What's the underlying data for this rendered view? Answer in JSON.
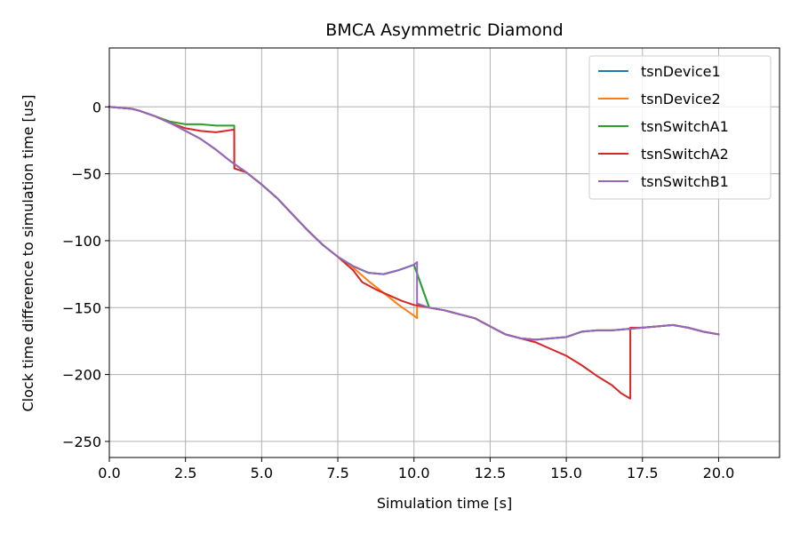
{
  "chart_data": {
    "type": "line",
    "title": "BMCA Asymmetric Diamond",
    "xlabel": "Simulation time [s]",
    "ylabel": "Clock time difference to simulation time [us]",
    "xlim": [
      0,
      22
    ],
    "ylim": [
      -262,
      44
    ],
    "xticks": [
      0,
      2.5,
      5,
      7.5,
      10,
      12.5,
      15,
      17.5,
      20
    ],
    "xtick_labels": [
      "0.0",
      "2.5",
      "5.0",
      "7.5",
      "10.0",
      "12.5",
      "15.0",
      "17.5",
      "20.0"
    ],
    "yticks": [
      0,
      -50,
      -100,
      -150,
      -200,
      -250
    ],
    "ytick_labels": [
      "0",
      "−50",
      "−100",
      "−150",
      "−200",
      "−250"
    ],
    "grid": true,
    "legend_position": "top-right",
    "series": [
      {
        "name": "tsnDevice1",
        "color": "#1f77b4",
        "x": [
          0,
          0.5,
          0.75,
          1.0,
          1.5,
          2.0,
          2.5,
          3.0,
          3.5,
          4.0,
          4.5,
          5.0,
          5.5,
          6.0,
          6.5,
          7.0,
          7.5,
          8.0,
          8.5,
          9.0,
          9.5,
          10.0,
          10.5,
          11.0,
          11.5,
          12.0,
          12.5,
          13.0,
          13.5,
          14.0,
          14.5,
          15.0,
          15.5,
          16.0,
          16.5,
          17.0,
          17.5,
          18.0,
          18.5,
          19.0,
          19.5,
          20.0
        ],
        "y": [
          0,
          -1,
          -1.5,
          -3,
          -7,
          -12,
          -18,
          -24,
          -32,
          -41,
          -49,
          -58,
          -68,
          -80,
          -92,
          -103,
          -112,
          -119,
          -124,
          -125,
          -122,
          -118,
          -150,
          -152,
          -155,
          -158,
          -164,
          -170,
          -173,
          -174,
          -173,
          -172,
          -168,
          -167,
          -167,
          -166,
          -165,
          -164,
          -163,
          -165,
          -168,
          -170
        ]
      },
      {
        "name": "tsnDevice2",
        "color": "#ff7f0e",
        "x": [
          0,
          0.5,
          0.75,
          1.0,
          1.5,
          2.0,
          2.5,
          3.0,
          3.5,
          4.0,
          4.5,
          5.0,
          5.5,
          6.0,
          6.5,
          7.0,
          7.5,
          7.9,
          8.5,
          9.0,
          9.5,
          10.0,
          10.1,
          10.101,
          10.5,
          11.0,
          11.5,
          12.0,
          12.5,
          13.0,
          13.5,
          14.0,
          14.5,
          15.0,
          15.5,
          16.0,
          16.5,
          17.0,
          17.5,
          18.0,
          18.5,
          19.0,
          19.5,
          20.0
        ],
        "y": [
          0,
          -1,
          -1.5,
          -3,
          -7,
          -12,
          -18,
          -24,
          -32,
          -41,
          -49,
          -58,
          -68,
          -80,
          -92,
          -103,
          -112,
          -118,
          -130,
          -139,
          -148,
          -156,
          -158,
          -147,
          -150,
          -152,
          -155,
          -158,
          -164,
          -170,
          -173,
          -174,
          -173,
          -172,
          -168,
          -167,
          -167,
          -166,
          -165,
          -164,
          -163,
          -165,
          -168,
          -170
        ]
      },
      {
        "name": "tsnSwitchA1",
        "color": "#2ca02c",
        "x": [
          0,
          0.5,
          0.75,
          1.0,
          1.5,
          2.0,
          2.5,
          3.0,
          3.5,
          4.0,
          4.1,
          4.101,
          4.5,
          5.0,
          5.5,
          6.0,
          6.5,
          7.0,
          7.5,
          8.0,
          8.5,
          9.0,
          9.5,
          10.0,
          10.5,
          11.0,
          11.5,
          12.0,
          12.5,
          13.0,
          13.5,
          14.0,
          14.5,
          15.0,
          15.5,
          16.0,
          16.5,
          17.0,
          17.5,
          18.0,
          18.5,
          19.0,
          19.5,
          20.0
        ],
        "y": [
          0,
          -1,
          -1.5,
          -3,
          -7,
          -11,
          -13,
          -13,
          -14,
          -14,
          -14,
          -46,
          -49,
          -58,
          -68,
          -80,
          -92,
          -103,
          -112,
          -119,
          -124,
          -125,
          -122,
          -118,
          -150,
          -152,
          -155,
          -158,
          -164,
          -170,
          -173,
          -174,
          -173,
          -172,
          -168,
          -167,
          -167,
          -166,
          -165,
          -164,
          -163,
          -165,
          -168,
          -170
        ]
      },
      {
        "name": "tsnSwitchA2",
        "color": "#d62728",
        "x": [
          0,
          0.5,
          0.75,
          1.0,
          1.5,
          2.0,
          2.5,
          3.0,
          3.5,
          3.8,
          4.1,
          4.101,
          4.5,
          5.0,
          5.5,
          6.0,
          6.5,
          7.0,
          7.5,
          8.0,
          8.3,
          8.8,
          9.2,
          9.6,
          10.0,
          10.5,
          11.0,
          11.5,
          12.0,
          12.5,
          13.0,
          13.5,
          14.0,
          14.5,
          15.0,
          15.5,
          16.0,
          16.5,
          16.8,
          17.1,
          17.101,
          17.5,
          18.0,
          18.5,
          19.0,
          19.5,
          20.0
        ],
        "y": [
          0,
          -1,
          -1.5,
          -3,
          -7,
          -12,
          -16,
          -18,
          -19,
          -18,
          -17,
          -46,
          -49,
          -58,
          -68,
          -80,
          -92,
          -103,
          -112,
          -122,
          -131,
          -137,
          -141,
          -145,
          -148,
          -150,
          -152,
          -155,
          -158,
          -164,
          -170,
          -173,
          -176,
          -181,
          -186,
          -193,
          -201,
          -208,
          -214,
          -218,
          -165,
          -165,
          -164,
          -163,
          -165,
          -168,
          -170
        ]
      },
      {
        "name": "tsnSwitchB1",
        "color": "#9467bd",
        "x": [
          0,
          0.5,
          0.75,
          1.0,
          1.5,
          2.0,
          2.5,
          3.0,
          3.5,
          4.0,
          4.5,
          5.0,
          5.5,
          6.0,
          6.5,
          7.0,
          7.5,
          8.0,
          8.5,
          9.0,
          9.5,
          10.0,
          10.1,
          10.101,
          10.5,
          11.0,
          11.5,
          12.0,
          12.5,
          13.0,
          13.5,
          14.0,
          14.5,
          15.0,
          15.5,
          16.0,
          16.5,
          17.0,
          17.5,
          18.0,
          18.5,
          19.0,
          19.5,
          20.0
        ],
        "y": [
          0,
          -1,
          -1.5,
          -3,
          -7,
          -12,
          -18,
          -24,
          -32,
          -41,
          -49,
          -58,
          -68,
          -80,
          -92,
          -103,
          -112,
          -119,
          -124,
          -125,
          -122,
          -118,
          -116,
          -147,
          -150,
          -152,
          -155,
          -158,
          -164,
          -170,
          -173,
          -174,
          -173,
          -172,
          -168,
          -167,
          -167,
          -166,
          -165,
          -164,
          -163,
          -165,
          -168,
          -170
        ]
      }
    ]
  }
}
